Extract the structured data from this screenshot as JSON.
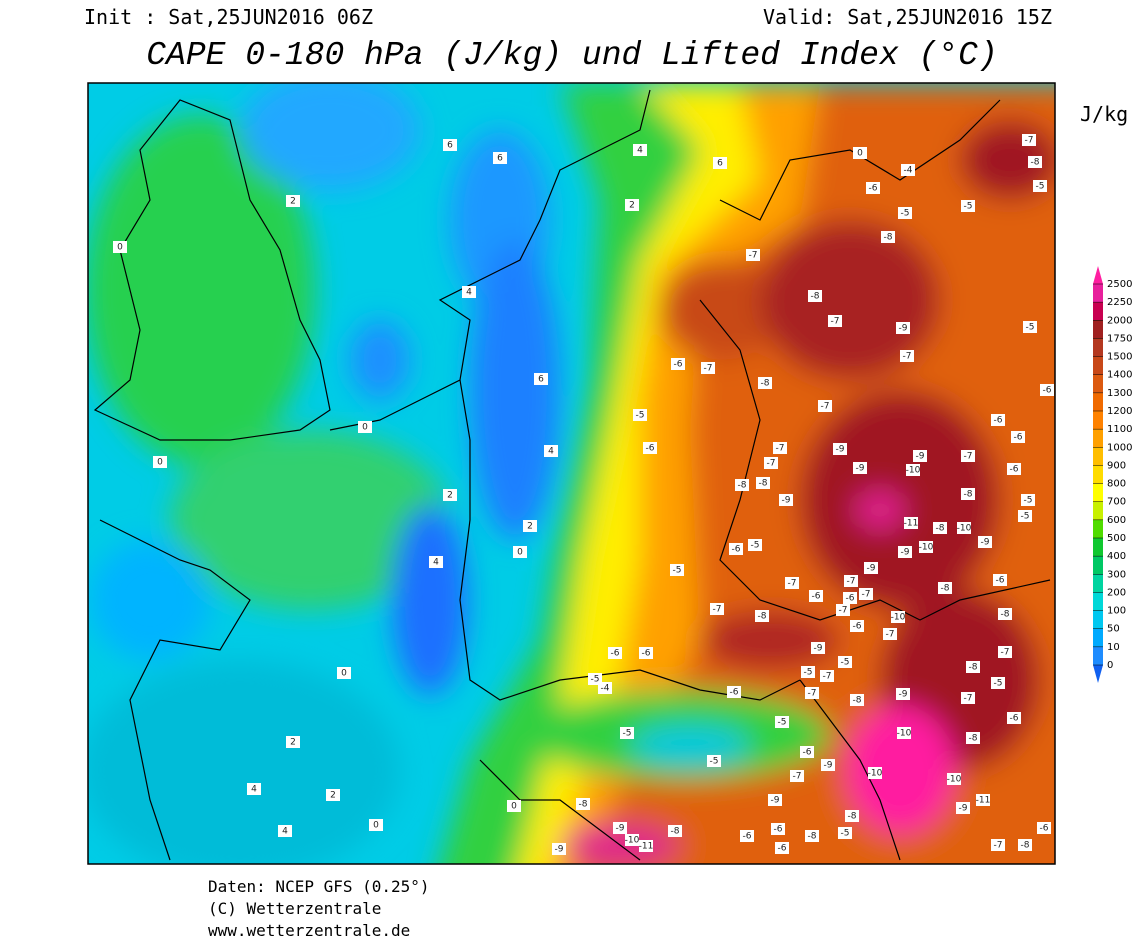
{
  "header": {
    "init": "Init : Sat,25JUN2016 06Z",
    "valid": "Valid: Sat,25JUN2016 15Z",
    "title": "CAPE 0-180 hPa (J/kg) und Lifted Index (°C)"
  },
  "colorbar": {
    "unit": "J/kg",
    "levels": [
      0,
      10,
      50,
      100,
      200,
      300,
      400,
      500,
      600,
      700,
      800,
      900,
      1000,
      1100,
      1200,
      1300,
      1400,
      1500,
      1750,
      2000,
      2250,
      2500
    ],
    "colors": [
      "#1e8cff",
      "#00aaff",
      "#00c8f0",
      "#00d8d8",
      "#00d4a0",
      "#00c864",
      "#10c830",
      "#50dc00",
      "#c8f000",
      "#ffff00",
      "#ffdc00",
      "#ffbe00",
      "#ffa000",
      "#ff8200",
      "#f06a00",
      "#dc5a10",
      "#c84818",
      "#b43820",
      "#a02020",
      "#c80050",
      "#e8209c"
    ],
    "below_color": "#1060f0",
    "above_color": "#ff1ea0"
  },
  "map": {
    "labels": [
      6,
      6,
      4,
      6,
      0,
      -4,
      2,
      2,
      0,
      4,
      6,
      4,
      2,
      2,
      0,
      4,
      0,
      0,
      0,
      2,
      4,
      2,
      4,
      0,
      0,
      -7,
      -8,
      -6,
      -5,
      -5,
      -8,
      -7,
      -8,
      -7,
      -9,
      -5,
      -6,
      -7,
      -8,
      -7,
      -5,
      -6,
      -7,
      -7,
      -7,
      -9,
      -9,
      -10,
      -9,
      -7,
      -6,
      -6,
      -6,
      -8,
      -8,
      -9,
      -8,
      -11,
      -8,
      -10,
      -9,
      -10,
      -9,
      -5,
      -5,
      -6,
      -5,
      -5,
      -7,
      -9,
      -7,
      -6,
      -6,
      -7,
      -7,
      -6,
      -7,
      -8,
      -10,
      -7,
      -6,
      -8,
      -8,
      -6,
      -6,
      -9,
      -5,
      -7,
      -5,
      -8,
      -7,
      -5,
      -4,
      -6,
      -7,
      -8,
      -9,
      -7,
      -5,
      -5,
      -5,
      -10,
      -8,
      -6,
      -6,
      -7,
      -9,
      -5,
      -10,
      -10,
      -11,
      -9,
      -9,
      -8,
      -5,
      -8,
      -9,
      -10,
      -11,
      -8,
      -6,
      -8,
      -6,
      -6,
      -9,
      -6,
      -8,
      -7,
      -6,
      -5
    ]
  },
  "footer": {
    "source": "Daten: NCEP GFS (0.25°)",
    "copyright": "(C) Wetterzentrale",
    "url": "www.wetterzentrale.de"
  }
}
